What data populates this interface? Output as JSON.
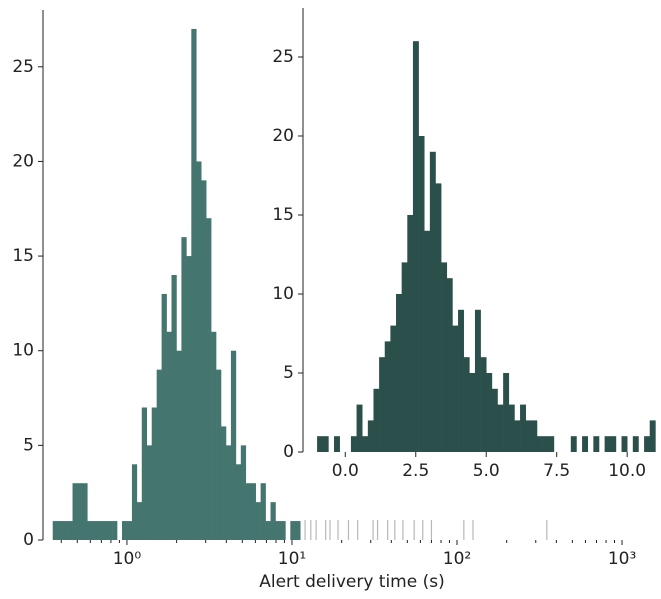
{
  "chart_data": [
    {
      "type": "histogram",
      "xscale": "log",
      "xlabel": "Alert delivery time (s)",
      "color": "#45756f",
      "rug_color": "#b8b8b8",
      "bins": [
        0.355,
        0.38,
        0.407,
        0.437,
        0.468,
        0.501,
        0.537,
        0.575,
        0.617,
        0.661,
        0.708,
        0.759,
        0.813,
        0.871,
        0.933,
        1.0,
        1.072,
        1.148,
        1.23,
        1.318,
        1.413,
        1.514,
        1.622,
        1.738,
        1.862,
        1.995,
        2.138,
        2.291,
        2.455,
        2.63,
        2.818,
        3.02,
        3.236,
        3.467,
        3.715,
        3.981,
        4.266,
        4.571,
        4.898,
        5.248,
        5.623,
        6.026,
        6.457,
        6.918,
        7.413,
        7.943,
        8.511,
        9.12,
        9.772,
        10.47,
        11.22
      ],
      "values": [
        1,
        1,
        1,
        1,
        3,
        3,
        3,
        1,
        1,
        1,
        1,
        1,
        1,
        0,
        1,
        1,
        4,
        2,
        7,
        5,
        7,
        9,
        13,
        11,
        14,
        10,
        16,
        15,
        27,
        20,
        19,
        17,
        11,
        9,
        6,
        5,
        10,
        4,
        5,
        3,
        3,
        2,
        3,
        1,
        2,
        1,
        1,
        0,
        1,
        1
      ],
      "rug": [
        12,
        13,
        14,
        16,
        17,
        19,
        22,
        25,
        31,
        33,
        38,
        42,
        47,
        55,
        62,
        70,
        110,
        125,
        350
      ],
      "xlim": [
        0.31,
        1722
      ],
      "ylim": [
        0,
        28
      ],
      "xticks": [
        {
          "value": 1,
          "label": "10⁰"
        },
        {
          "value": 10,
          "label": "10¹"
        },
        {
          "value": 100,
          "label": "10²"
        },
        {
          "value": 1000,
          "label": "10³"
        }
      ],
      "yticks": [
        0,
        5,
        10,
        15,
        20,
        25
      ]
    },
    {
      "type": "histogram",
      "xscale": "linear",
      "color": "#2b4f4a",
      "bins": [
        -1,
        -0.8,
        -0.6,
        -0.4,
        -0.2,
        0,
        0.2,
        0.4,
        0.6,
        0.8,
        1,
        1.2,
        1.4,
        1.6,
        1.8,
        2,
        2.2,
        2.4,
        2.6,
        2.8,
        3,
        3.2,
        3.4,
        3.6,
        3.8,
        4,
        4.2,
        4.4,
        4.6,
        4.8,
        5,
        5.2,
        5.4,
        5.6,
        5.8,
        6,
        6.2,
        6.4,
        6.6,
        6.8,
        7,
        7.2,
        7.4,
        7.6,
        7.8,
        8,
        8.2,
        8.4,
        8.6,
        8.8,
        9,
        9.2,
        9.4,
        9.6,
        9.8,
        10,
        10.2,
        10.4,
        10.6,
        10.8,
        11
      ],
      "values": [
        1,
        1,
        0,
        1,
        0,
        0,
        1,
        3,
        1,
        2,
        4,
        6,
        7,
        8,
        10,
        12,
        15,
        26,
        20,
        14,
        19,
        17,
        12,
        11,
        8,
        9,
        6,
        5,
        9,
        6,
        5,
        4,
        3,
        5,
        3,
        2,
        3,
        2,
        2,
        1,
        1,
        1,
        0,
        0,
        0,
        1,
        0,
        1,
        0,
        1,
        0,
        1,
        1,
        0,
        1,
        0,
        1,
        0,
        1,
        2
      ],
      "xlim": [
        -1.5,
        11.2
      ],
      "ylim": [
        0,
        28.1
      ],
      "xticks": [
        {
          "value": 0,
          "label": "0.0"
        },
        2.5,
        {
          "value": 5,
          "label": "5.0"
        },
        7.5,
        {
          "value": 10,
          "label": "10.0"
        }
      ],
      "yticks": [
        0,
        5,
        10,
        15,
        20,
        25
      ]
    }
  ]
}
